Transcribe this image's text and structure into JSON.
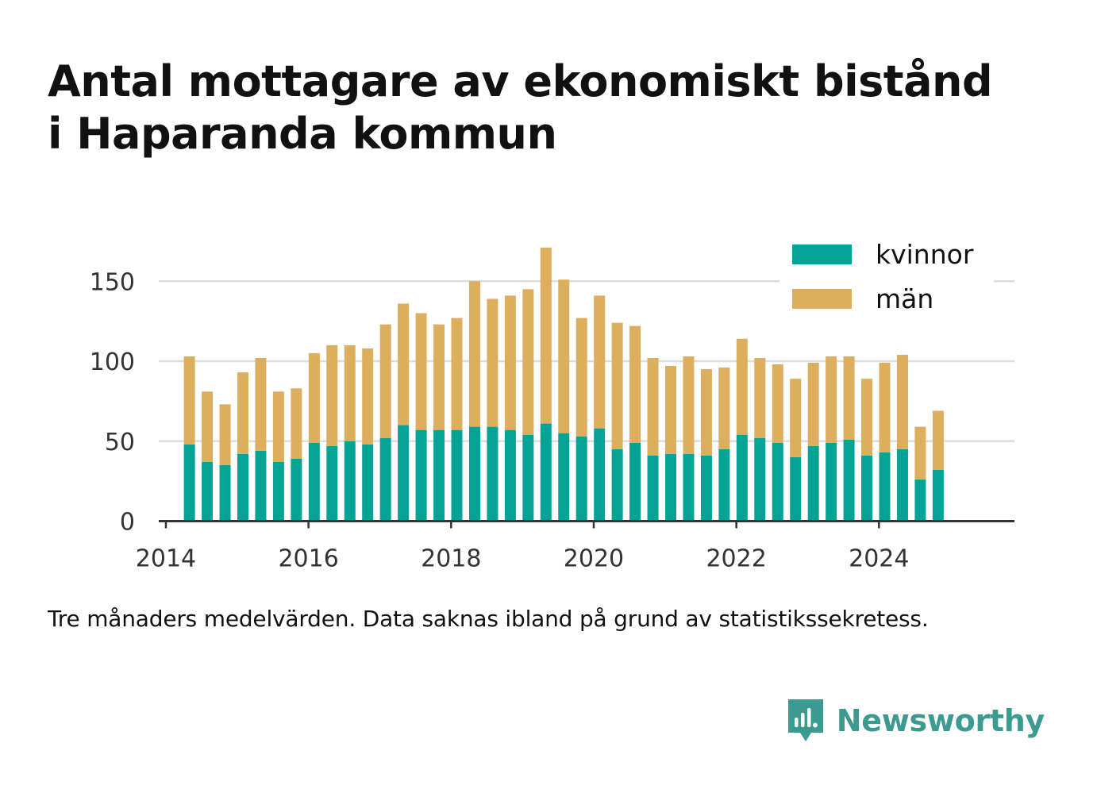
{
  "title_lines": [
    "Antal mottagare av ekonomiskt bistånd",
    "i Haparanda kommun"
  ],
  "caption": "Tre månaders medelvärden. Data saknas ibland på grund av statistikssekretess.",
  "brand": {
    "name": "Newsworthy",
    "icon": "newsworthy-logo-icon",
    "color": "#3d9a91"
  },
  "chart_data": {
    "type": "bar",
    "stacked": true,
    "title": "Antal mottagare av ekonomiskt bistånd i Haparanda kommun",
    "xlabel": "",
    "ylabel": "",
    "ylim": [
      0,
      170
    ],
    "xlim": [
      2013.9,
      2025.9
    ],
    "yticks": [
      0,
      50,
      100,
      150
    ],
    "xticks": [
      2014,
      2016,
      2018,
      2020,
      2022,
      2024
    ],
    "grid": "horizontal",
    "legend_position": "top-right",
    "x": [
      2014.33,
      2014.58,
      2014.83,
      2015.08,
      2015.33,
      2015.58,
      2015.83,
      2016.08,
      2016.33,
      2016.58,
      2016.83,
      2017.08,
      2017.33,
      2017.58,
      2017.83,
      2018.08,
      2018.33,
      2018.58,
      2018.83,
      2019.08,
      2019.33,
      2019.58,
      2019.83,
      2020.08,
      2020.33,
      2020.58,
      2020.83,
      2021.08,
      2021.33,
      2021.58,
      2021.83,
      2022.08,
      2022.33,
      2022.58,
      2022.83,
      2023.08,
      2023.33,
      2023.58,
      2023.83,
      2024.08,
      2024.33,
      2024.58,
      2024.83
    ],
    "series": [
      {
        "name": "kvinnor",
        "color": "#05a296",
        "values": [
          48,
          37,
          35,
          42,
          44,
          37,
          39,
          49,
          47,
          50,
          48,
          52,
          60,
          57,
          57,
          57,
          59,
          59,
          57,
          54,
          61,
          55,
          53,
          58,
          45,
          49,
          41,
          42,
          42,
          41,
          45,
          54,
          52,
          49,
          40,
          47,
          49,
          51,
          41,
          43,
          45,
          26,
          32
        ]
      },
      {
        "name": "män",
        "color": "#dcae5d",
        "values": [
          55,
          44,
          38,
          51,
          58,
          44,
          44,
          56,
          63,
          60,
          60,
          71,
          76,
          73,
          66,
          70,
          91,
          80,
          84,
          91,
          110,
          96,
          74,
          83,
          79,
          73,
          61,
          55,
          61,
          54,
          51,
          60,
          50,
          49,
          49,
          52,
          54,
          52,
          48,
          56,
          59,
          33,
          37
        ]
      }
    ]
  }
}
